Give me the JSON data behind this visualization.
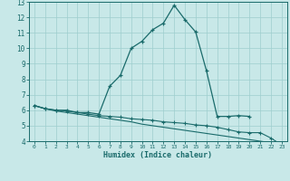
{
  "xlabel": "Humidex (Indice chaleur)",
  "bg_color": "#c8e8e8",
  "grid_color": "#9ecece",
  "line_color": "#1a6b6b",
  "xlim": [
    -0.5,
    23.5
  ],
  "ylim": [
    4,
    13
  ],
  "xticks": [
    0,
    1,
    2,
    3,
    4,
    5,
    6,
    7,
    8,
    9,
    10,
    11,
    12,
    13,
    14,
    15,
    16,
    17,
    18,
    19,
    20,
    21,
    22,
    23
  ],
  "yticks": [
    4,
    5,
    6,
    7,
    8,
    9,
    10,
    11,
    12,
    13
  ],
  "line1_x": [
    0,
    1,
    2,
    3,
    4,
    5,
    6,
    7,
    8,
    9,
    10,
    11,
    12,
    13,
    14,
    15,
    16,
    17,
    18,
    19,
    20
  ],
  "line1_y": [
    6.3,
    6.1,
    6.0,
    6.0,
    5.85,
    5.85,
    5.75,
    7.55,
    8.25,
    10.0,
    10.45,
    11.2,
    11.62,
    12.78,
    11.85,
    11.05,
    8.55,
    5.6,
    5.6,
    5.65,
    5.6
  ],
  "line2_x": [
    0,
    1,
    2,
    3,
    4,
    5,
    6,
    7,
    8,
    9,
    10,
    11,
    12,
    13,
    14,
    15,
    16,
    17,
    18,
    19,
    20,
    21,
    22,
    23
  ],
  "line2_y": [
    6.3,
    6.1,
    6.0,
    5.95,
    5.85,
    5.75,
    5.65,
    5.6,
    5.55,
    5.45,
    5.4,
    5.35,
    5.25,
    5.2,
    5.15,
    5.05,
    5.0,
    4.9,
    4.75,
    4.6,
    4.55,
    4.55,
    4.2,
    3.75
  ],
  "line3_x": [
    0,
    1,
    2,
    3,
    4,
    5,
    6,
    7,
    8,
    9,
    10,
    11,
    12,
    13,
    14,
    15,
    16,
    17,
    18,
    19,
    20,
    21,
    22,
    23
  ],
  "line3_y": [
    6.3,
    6.1,
    5.95,
    5.85,
    5.75,
    5.65,
    5.55,
    5.45,
    5.35,
    5.25,
    5.1,
    5.0,
    4.9,
    4.8,
    4.7,
    4.6,
    4.5,
    4.4,
    4.3,
    4.2,
    4.1,
    4.0,
    3.9,
    3.75
  ]
}
